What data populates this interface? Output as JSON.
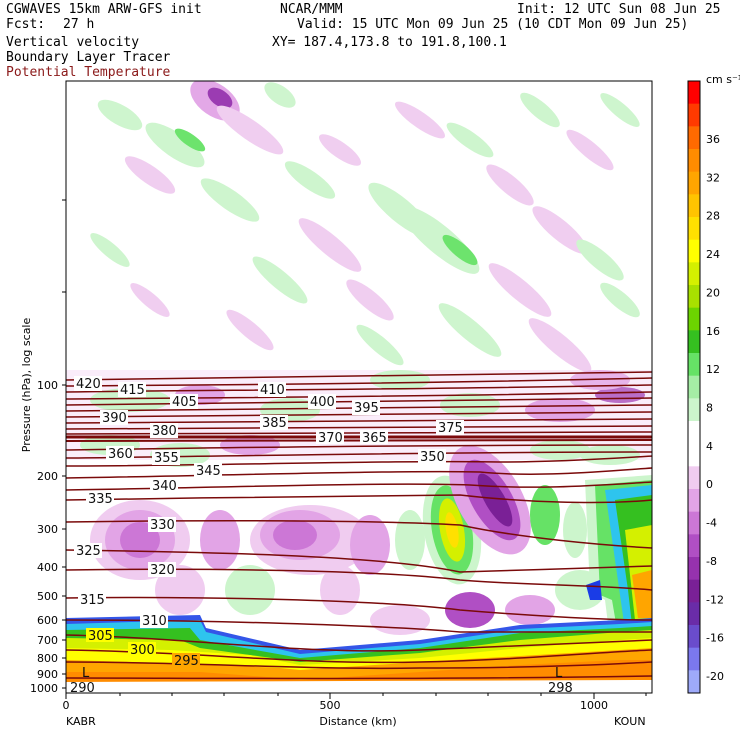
{
  "header": {
    "model": "CGWAVES 15km ARW-GFS init",
    "org": "NCAR/MMM",
    "init": "Init: 12 UTC Sun 08 Jun 25",
    "fcst_label": "Fcst:",
    "fcst_value": "27 h",
    "valid": "Valid: 15 UTC Mon 09 Jun 25 (10 CDT Mon 09 Jun 25)",
    "field1": "Vertical velocity",
    "xy": "XY= 187.4,173.8 to 191.8,100.1",
    "field2": "Boundary Layer Tracer",
    "field3": "Potential Temperature"
  },
  "chart_data": {
    "type": "heatmap",
    "title": "Vertical velocity",
    "xlabel": "Distance (km)",
    "ylabel": "Pressure (hPa), log scale",
    "x_ticks": [
      0,
      500,
      1000
    ],
    "xlim": [
      0,
      1110
    ],
    "y_ticks": [
      100,
      200,
      300,
      400,
      500,
      600,
      700,
      800,
      900,
      1000
    ],
    "y_scale": "log",
    "endpoints": {
      "left": "KABR",
      "right": "KOUN"
    },
    "colorbar": {
      "unit": "cm s⁻¹",
      "ticks": [
        36,
        32,
        28,
        24,
        20,
        16,
        12,
        8,
        4,
        0,
        -4,
        -8,
        -12,
        -16,
        -20
      ],
      "colors": [
        "#ff0000",
        "#ff3a00",
        "#ff6a00",
        "#ff8c00",
        "#ffa500",
        "#ffc400",
        "#ffe000",
        "#ffff00",
        "#d4f000",
        "#a8e000",
        "#6cd400",
        "#35c020",
        "#66e266",
        "#a5eda5",
        "#ccf5cc",
        "#ffffff",
        "#ffffff",
        "#f0ccf0",
        "#e2a4e6",
        "#cc77d6",
        "#b04fc4",
        "#9632ae",
        "#7a2096",
        "#6a2ca8",
        "#6a4ccc",
        "#7b78ee",
        "#9eaafa"
      ]
    },
    "theta_contours": [
      {
        "value": 420,
        "label": "420"
      },
      {
        "value": 415,
        "label": "415"
      },
      {
        "value": 410,
        "label": "410"
      },
      {
        "value": 405,
        "label": "405"
      },
      {
        "value": 400,
        "label": "400"
      },
      {
        "value": 395,
        "label": "395"
      },
      {
        "value": 390,
        "label": "390"
      },
      {
        "value": 385,
        "label": "385"
      },
      {
        "value": 380,
        "label": "380"
      },
      {
        "value": 375,
        "label": "375"
      },
      {
        "value": 370,
        "label": "370"
      },
      {
        "value": 365,
        "label": "365"
      },
      {
        "value": 360,
        "label": "360"
      },
      {
        "value": 355,
        "label": "355"
      },
      {
        "value": 350,
        "label": "350"
      },
      {
        "value": 345,
        "label": "345"
      },
      {
        "value": 340,
        "label": "340"
      },
      {
        "value": 335,
        "label": "335"
      },
      {
        "value": 330,
        "label": "330"
      },
      {
        "value": 325,
        "label": "325"
      },
      {
        "value": 320,
        "label": "320"
      },
      {
        "value": 315,
        "label": "315"
      },
      {
        "value": 310,
        "label": "310"
      },
      {
        "value": 305,
        "label": "305"
      },
      {
        "value": 300,
        "label": "300"
      },
      {
        "value": 295,
        "label": "295"
      },
      {
        "value": 290,
        "label": "290"
      }
    ],
    "low_markers": [
      "L",
      "L"
    ],
    "surface_value": "298"
  }
}
